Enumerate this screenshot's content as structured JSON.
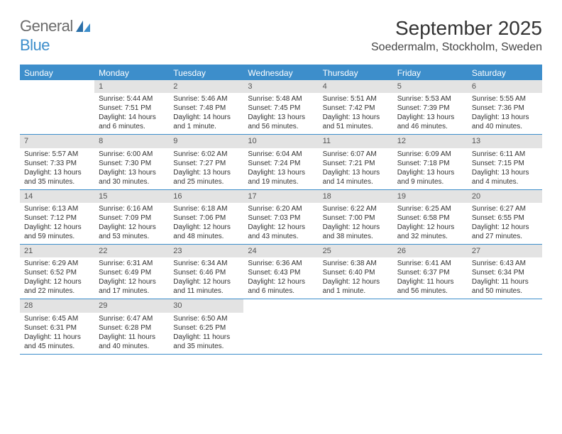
{
  "logo": {
    "general": "General",
    "blue": "Blue"
  },
  "title": "September 2025",
  "location": "Soedermalm, Stockholm, Sweden",
  "colors": {
    "accent": "#3d8ecb",
    "daynum_bg": "#e3e3e3",
    "text": "#333333",
    "logo_gray": "#6b6b6b",
    "bg": "#ffffff"
  },
  "day_headers": [
    "Sunday",
    "Monday",
    "Tuesday",
    "Wednesday",
    "Thursday",
    "Friday",
    "Saturday"
  ],
  "weeks": [
    [
      {
        "n": "",
        "sr": "",
        "ss": "",
        "dl": ""
      },
      {
        "n": "1",
        "sr": "Sunrise: 5:44 AM",
        "ss": "Sunset: 7:51 PM",
        "dl": "Daylight: 14 hours and 6 minutes."
      },
      {
        "n": "2",
        "sr": "Sunrise: 5:46 AM",
        "ss": "Sunset: 7:48 PM",
        "dl": "Daylight: 14 hours and 1 minute."
      },
      {
        "n": "3",
        "sr": "Sunrise: 5:48 AM",
        "ss": "Sunset: 7:45 PM",
        "dl": "Daylight: 13 hours and 56 minutes."
      },
      {
        "n": "4",
        "sr": "Sunrise: 5:51 AM",
        "ss": "Sunset: 7:42 PM",
        "dl": "Daylight: 13 hours and 51 minutes."
      },
      {
        "n": "5",
        "sr": "Sunrise: 5:53 AM",
        "ss": "Sunset: 7:39 PM",
        "dl": "Daylight: 13 hours and 46 minutes."
      },
      {
        "n": "6",
        "sr": "Sunrise: 5:55 AM",
        "ss": "Sunset: 7:36 PM",
        "dl": "Daylight: 13 hours and 40 minutes."
      }
    ],
    [
      {
        "n": "7",
        "sr": "Sunrise: 5:57 AM",
        "ss": "Sunset: 7:33 PM",
        "dl": "Daylight: 13 hours and 35 minutes."
      },
      {
        "n": "8",
        "sr": "Sunrise: 6:00 AM",
        "ss": "Sunset: 7:30 PM",
        "dl": "Daylight: 13 hours and 30 minutes."
      },
      {
        "n": "9",
        "sr": "Sunrise: 6:02 AM",
        "ss": "Sunset: 7:27 PM",
        "dl": "Daylight: 13 hours and 25 minutes."
      },
      {
        "n": "10",
        "sr": "Sunrise: 6:04 AM",
        "ss": "Sunset: 7:24 PM",
        "dl": "Daylight: 13 hours and 19 minutes."
      },
      {
        "n": "11",
        "sr": "Sunrise: 6:07 AM",
        "ss": "Sunset: 7:21 PM",
        "dl": "Daylight: 13 hours and 14 minutes."
      },
      {
        "n": "12",
        "sr": "Sunrise: 6:09 AM",
        "ss": "Sunset: 7:18 PM",
        "dl": "Daylight: 13 hours and 9 minutes."
      },
      {
        "n": "13",
        "sr": "Sunrise: 6:11 AM",
        "ss": "Sunset: 7:15 PM",
        "dl": "Daylight: 13 hours and 4 minutes."
      }
    ],
    [
      {
        "n": "14",
        "sr": "Sunrise: 6:13 AM",
        "ss": "Sunset: 7:12 PM",
        "dl": "Daylight: 12 hours and 59 minutes."
      },
      {
        "n": "15",
        "sr": "Sunrise: 6:16 AM",
        "ss": "Sunset: 7:09 PM",
        "dl": "Daylight: 12 hours and 53 minutes."
      },
      {
        "n": "16",
        "sr": "Sunrise: 6:18 AM",
        "ss": "Sunset: 7:06 PM",
        "dl": "Daylight: 12 hours and 48 minutes."
      },
      {
        "n": "17",
        "sr": "Sunrise: 6:20 AM",
        "ss": "Sunset: 7:03 PM",
        "dl": "Daylight: 12 hours and 43 minutes."
      },
      {
        "n": "18",
        "sr": "Sunrise: 6:22 AM",
        "ss": "Sunset: 7:00 PM",
        "dl": "Daylight: 12 hours and 38 minutes."
      },
      {
        "n": "19",
        "sr": "Sunrise: 6:25 AM",
        "ss": "Sunset: 6:58 PM",
        "dl": "Daylight: 12 hours and 32 minutes."
      },
      {
        "n": "20",
        "sr": "Sunrise: 6:27 AM",
        "ss": "Sunset: 6:55 PM",
        "dl": "Daylight: 12 hours and 27 minutes."
      }
    ],
    [
      {
        "n": "21",
        "sr": "Sunrise: 6:29 AM",
        "ss": "Sunset: 6:52 PM",
        "dl": "Daylight: 12 hours and 22 minutes."
      },
      {
        "n": "22",
        "sr": "Sunrise: 6:31 AM",
        "ss": "Sunset: 6:49 PM",
        "dl": "Daylight: 12 hours and 17 minutes."
      },
      {
        "n": "23",
        "sr": "Sunrise: 6:34 AM",
        "ss": "Sunset: 6:46 PM",
        "dl": "Daylight: 12 hours and 11 minutes."
      },
      {
        "n": "24",
        "sr": "Sunrise: 6:36 AM",
        "ss": "Sunset: 6:43 PM",
        "dl": "Daylight: 12 hours and 6 minutes."
      },
      {
        "n": "25",
        "sr": "Sunrise: 6:38 AM",
        "ss": "Sunset: 6:40 PM",
        "dl": "Daylight: 12 hours and 1 minute."
      },
      {
        "n": "26",
        "sr": "Sunrise: 6:41 AM",
        "ss": "Sunset: 6:37 PM",
        "dl": "Daylight: 11 hours and 56 minutes."
      },
      {
        "n": "27",
        "sr": "Sunrise: 6:43 AM",
        "ss": "Sunset: 6:34 PM",
        "dl": "Daylight: 11 hours and 50 minutes."
      }
    ],
    [
      {
        "n": "28",
        "sr": "Sunrise: 6:45 AM",
        "ss": "Sunset: 6:31 PM",
        "dl": "Daylight: 11 hours and 45 minutes."
      },
      {
        "n": "29",
        "sr": "Sunrise: 6:47 AM",
        "ss": "Sunset: 6:28 PM",
        "dl": "Daylight: 11 hours and 40 minutes."
      },
      {
        "n": "30",
        "sr": "Sunrise: 6:50 AM",
        "ss": "Sunset: 6:25 PM",
        "dl": "Daylight: 11 hours and 35 minutes."
      },
      {
        "n": "",
        "sr": "",
        "ss": "",
        "dl": ""
      },
      {
        "n": "",
        "sr": "",
        "ss": "",
        "dl": ""
      },
      {
        "n": "",
        "sr": "",
        "ss": "",
        "dl": ""
      },
      {
        "n": "",
        "sr": "",
        "ss": "",
        "dl": ""
      }
    ]
  ]
}
